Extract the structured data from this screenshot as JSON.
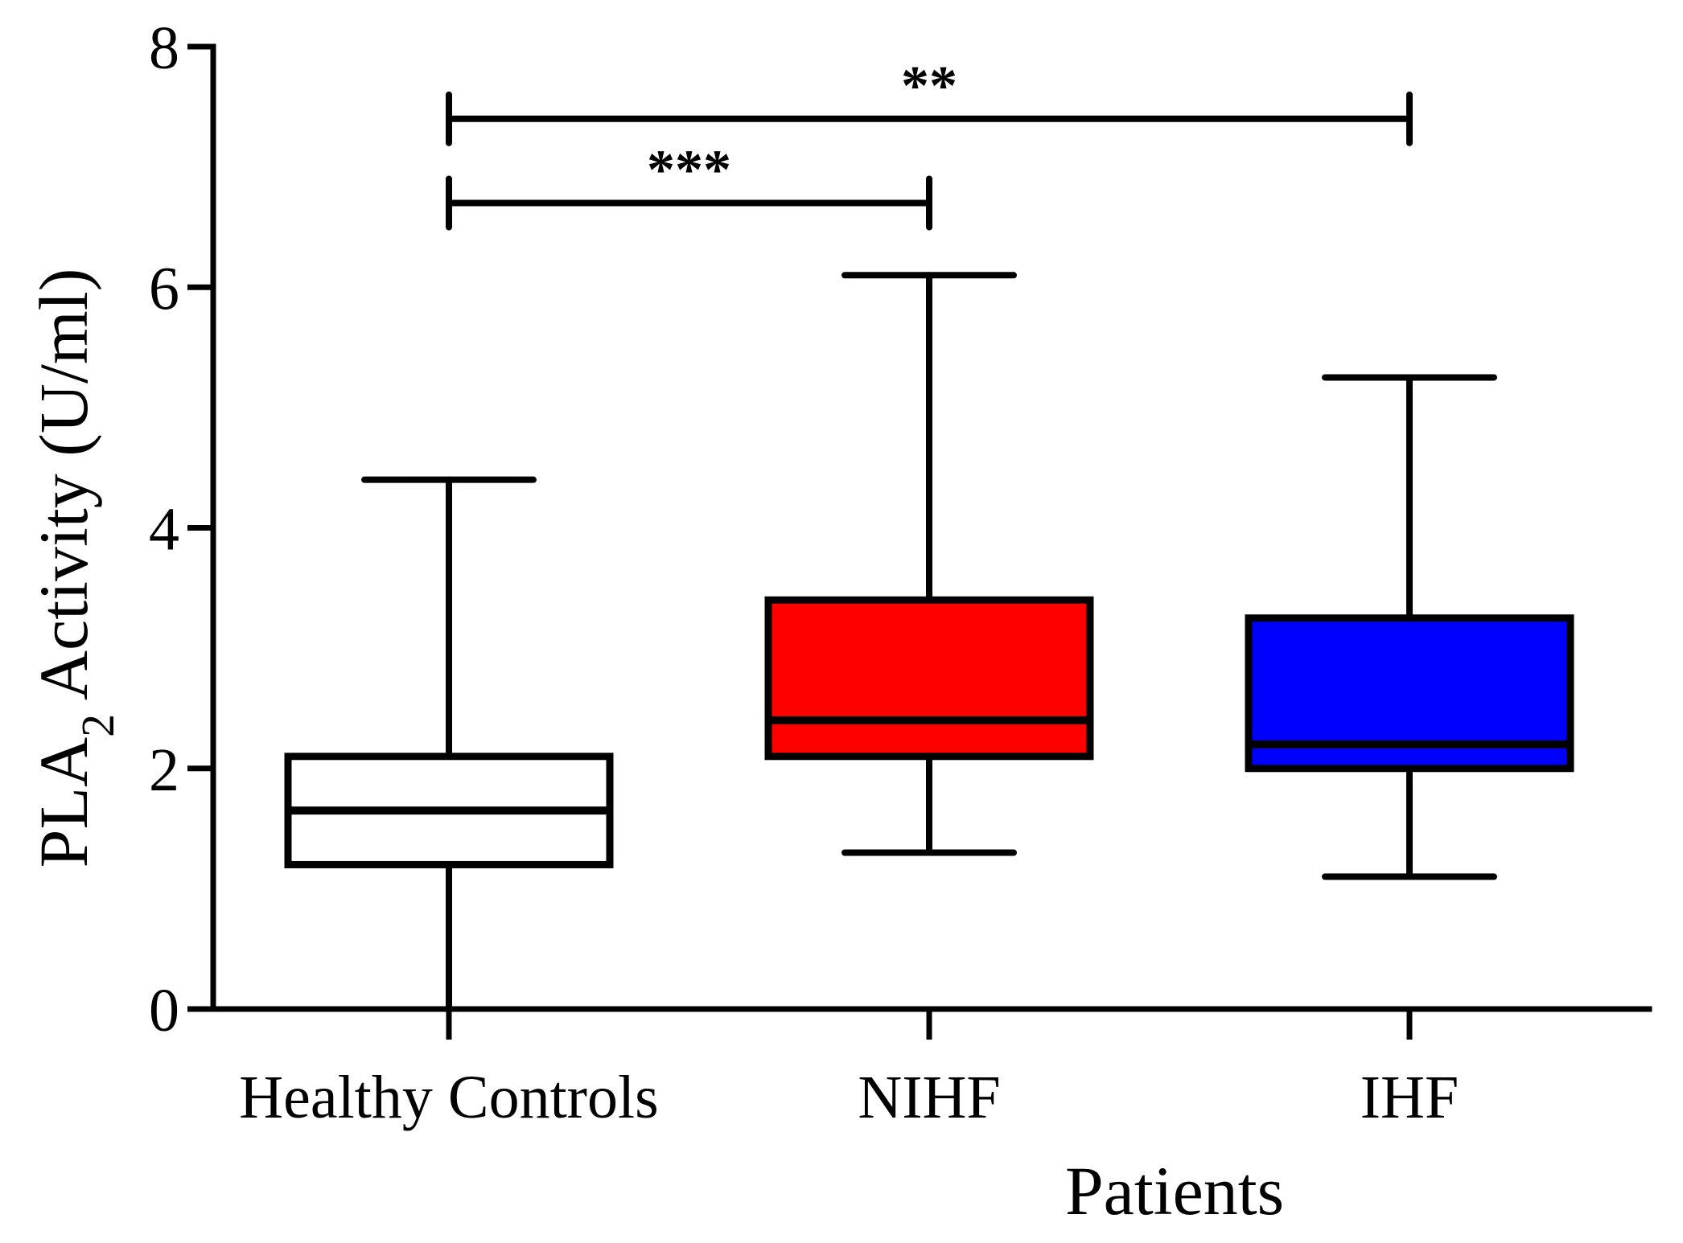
{
  "chart_data": {
    "type": "box",
    "xlabel": "Patients",
    "ylabel": {
      "main": "PLA",
      "subscript": "2",
      "rest": " Activity (U/ml)"
    },
    "ylim": [
      0,
      8
    ],
    "yticks": [
      "0",
      "2",
      "4",
      "6",
      "8"
    ],
    "categories": [
      "Healthy Controls",
      "NIHF",
      "IHF"
    ],
    "boxes": [
      {
        "name": "Healthy Controls",
        "min": 0.0,
        "q1": 1.2,
        "median": 1.65,
        "q3": 2.1,
        "max": 4.4,
        "color": "#ffffff"
      },
      {
        "name": "NIHF",
        "min": 1.3,
        "q1": 2.1,
        "median": 2.4,
        "q3": 3.4,
        "max": 6.1,
        "color": "#ff0000"
      },
      {
        "name": "IHF",
        "min": 1.1,
        "q1": 2.0,
        "median": 2.2,
        "q3": 3.25,
        "max": 5.25,
        "color": "#0000ff"
      }
    ],
    "significance": [
      {
        "from": 0,
        "to": 2,
        "y": 7.4,
        "label": "**"
      },
      {
        "from": 0,
        "to": 1,
        "y": 6.7,
        "label": "***"
      }
    ],
    "grid": false,
    "legend": "none"
  }
}
